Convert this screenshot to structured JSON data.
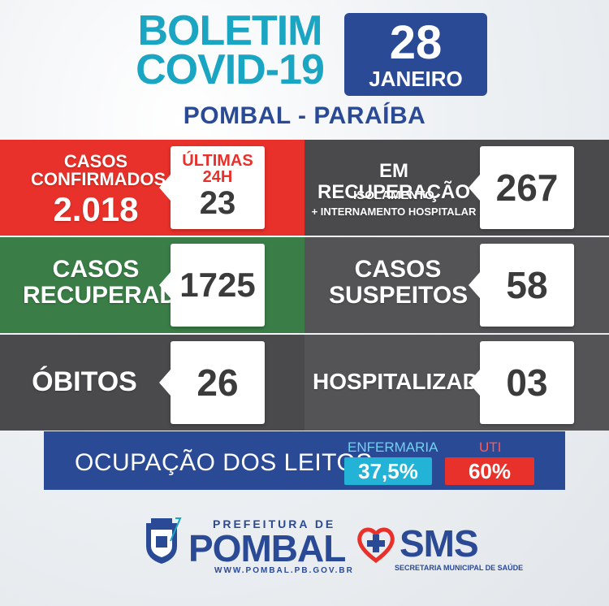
{
  "header": {
    "title_line1": "BOLETIM",
    "title_line2": "COVID-19",
    "date_day": "28",
    "date_month": "JANEIRO",
    "location": "POMBAL - PARAÍBA"
  },
  "confirmed": {
    "label_line1": "CASOS",
    "label_line2": "CONFIRMADOS",
    "total": "2.018",
    "last24_line1": "ÚLTIMAS",
    "last24_line2": "24H",
    "last24_value": "23"
  },
  "recovering": {
    "label": "EM RECUPERAÇÃO",
    "sub1": "ISOLAMENTO",
    "sub2": "+ INTERNAMENTO HOSPITALAR",
    "value": "267"
  },
  "recovered": {
    "label_line1": "CASOS",
    "label_line2": "RECUPERADOS",
    "value": "1725"
  },
  "suspects": {
    "label_line1": "CASOS",
    "label_line2": "SUSPEITOS",
    "value": "58"
  },
  "deaths": {
    "label": "ÓBITOS",
    "value": "26"
  },
  "hospitalized": {
    "label": "HOSPITALIZADOS",
    "value": "03"
  },
  "occupancy": {
    "label": "OCUPAÇÃO DOS LEITOS:",
    "ward_label": "ENFERMARIA",
    "ward_value": "37,5%",
    "icu_label": "UTI",
    "icu_value": "60%"
  },
  "footer": {
    "prefeitura": "PREFEITURA DE",
    "city": "POMBAL",
    "url": "WWW.POMBAL.PB.GOV.BR",
    "sms": "SMS",
    "sms_sub": "SECRETARIA MUNICIPAL DE SAÚDE"
  },
  "colors": {
    "accent_blue": "#2a4a96",
    "title_cyan": "#1aa5c2",
    "red": "#e8312a",
    "green": "#3a7d47",
    "dark": "#4a4a4c",
    "ward_cyan": "#22b3d6",
    "icu_red": "#e8312a"
  },
  "icons": {
    "coat_of_arms": "coat-of-arms-icon",
    "sms_logo": "heart-cross-icon"
  }
}
